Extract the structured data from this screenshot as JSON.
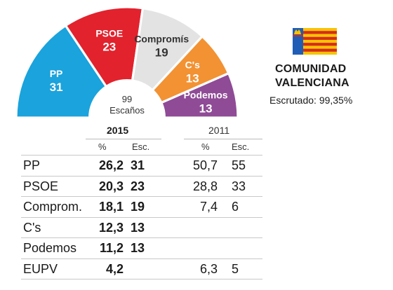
{
  "chart_data": {
    "type": "pie",
    "subtype": "parliament-semicircle",
    "total_seats": "99",
    "total_label": "Escaños",
    "series": [
      {
        "name": "PP",
        "seats": 31,
        "color": "#1aa3dc",
        "label_color": "#ffffff"
      },
      {
        "name": "PSOE",
        "seats": 23,
        "color": "#e2222d",
        "label_color": "#ffffff"
      },
      {
        "name": "Compromís",
        "seats": 19,
        "color": "#e3e3e3",
        "label_color": "#333333"
      },
      {
        "name": "C's",
        "seats": 13,
        "color": "#f29233",
        "label_color": "#ffffff"
      },
      {
        "name": "Podemos",
        "seats": 13,
        "color": "#8f4b96",
        "label_color": "#ffffff"
      }
    ]
  },
  "region": {
    "name_line1": "COMUNIDAD",
    "name_line2": "VALENCIANA",
    "escrutado": "Escrutado: 99,35%"
  },
  "flag": {
    "stripe_yellow": "#f6c400",
    "stripe_red": "#d52b1e",
    "hoist_blue": "#1f5db6"
  },
  "table": {
    "year_2015": "2015",
    "year_2011": "2011",
    "pct_header": "%",
    "seats_header": "Esc.",
    "rows": [
      {
        "party": "PP",
        "pct_2015": "26,2",
        "seats_2015": "31",
        "pct_2011": "50,7",
        "seats_2011": "55"
      },
      {
        "party": "PSOE",
        "pct_2015": "20,3",
        "seats_2015": "23",
        "pct_2011": "28,8",
        "seats_2011": "33"
      },
      {
        "party": "Comprom.",
        "pct_2015": "18,1",
        "seats_2015": "19",
        "pct_2011": "7,4",
        "seats_2011": "6"
      },
      {
        "party": "C's",
        "pct_2015": "12,3",
        "seats_2015": "13",
        "pct_2011": "",
        "seats_2011": ""
      },
      {
        "party": "Podemos",
        "pct_2015": "11,2",
        "seats_2015": "13",
        "pct_2011": "",
        "seats_2011": ""
      },
      {
        "party": "EUPV",
        "pct_2015": "4,2",
        "seats_2015": "",
        "pct_2011": "6,3",
        "seats_2011": "5"
      }
    ]
  }
}
